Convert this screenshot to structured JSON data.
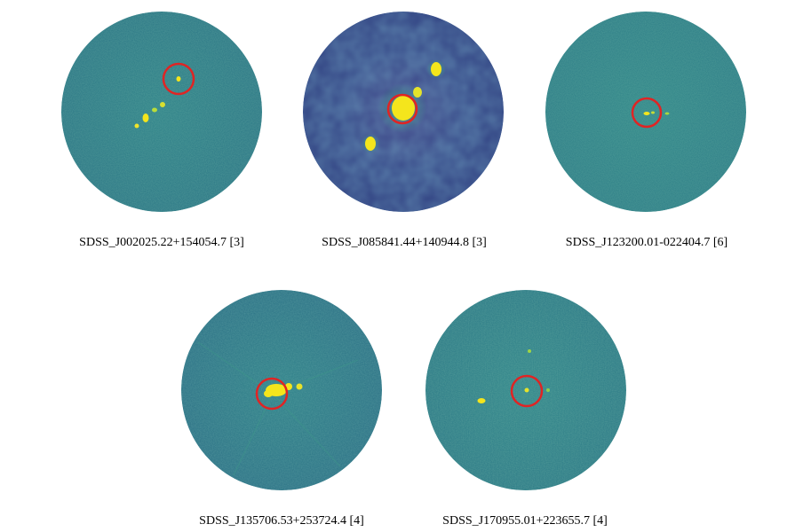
{
  "panels": [
    {
      "caption": "SDSS_J002025.22+154054.7 [3]",
      "palette": "green"
    },
    {
      "caption": "SDSS_J085841.44+140944.8 [3]",
      "palette": "blue"
    },
    {
      "caption": "SDSS_J123200.01-022404.7 [6]",
      "palette": "green"
    },
    {
      "caption": "SDSS_J135706.53+253724.4 [4]",
      "palette": "green"
    },
    {
      "caption": "SDSS_J170955.01+223655.7 [4]",
      "palette": "green"
    }
  ],
  "colors": {
    "background_green": "#2b7b86",
    "background_blue": "#3b4e8c",
    "source": "#f4e51c",
    "marker_circle": "#e02424"
  }
}
